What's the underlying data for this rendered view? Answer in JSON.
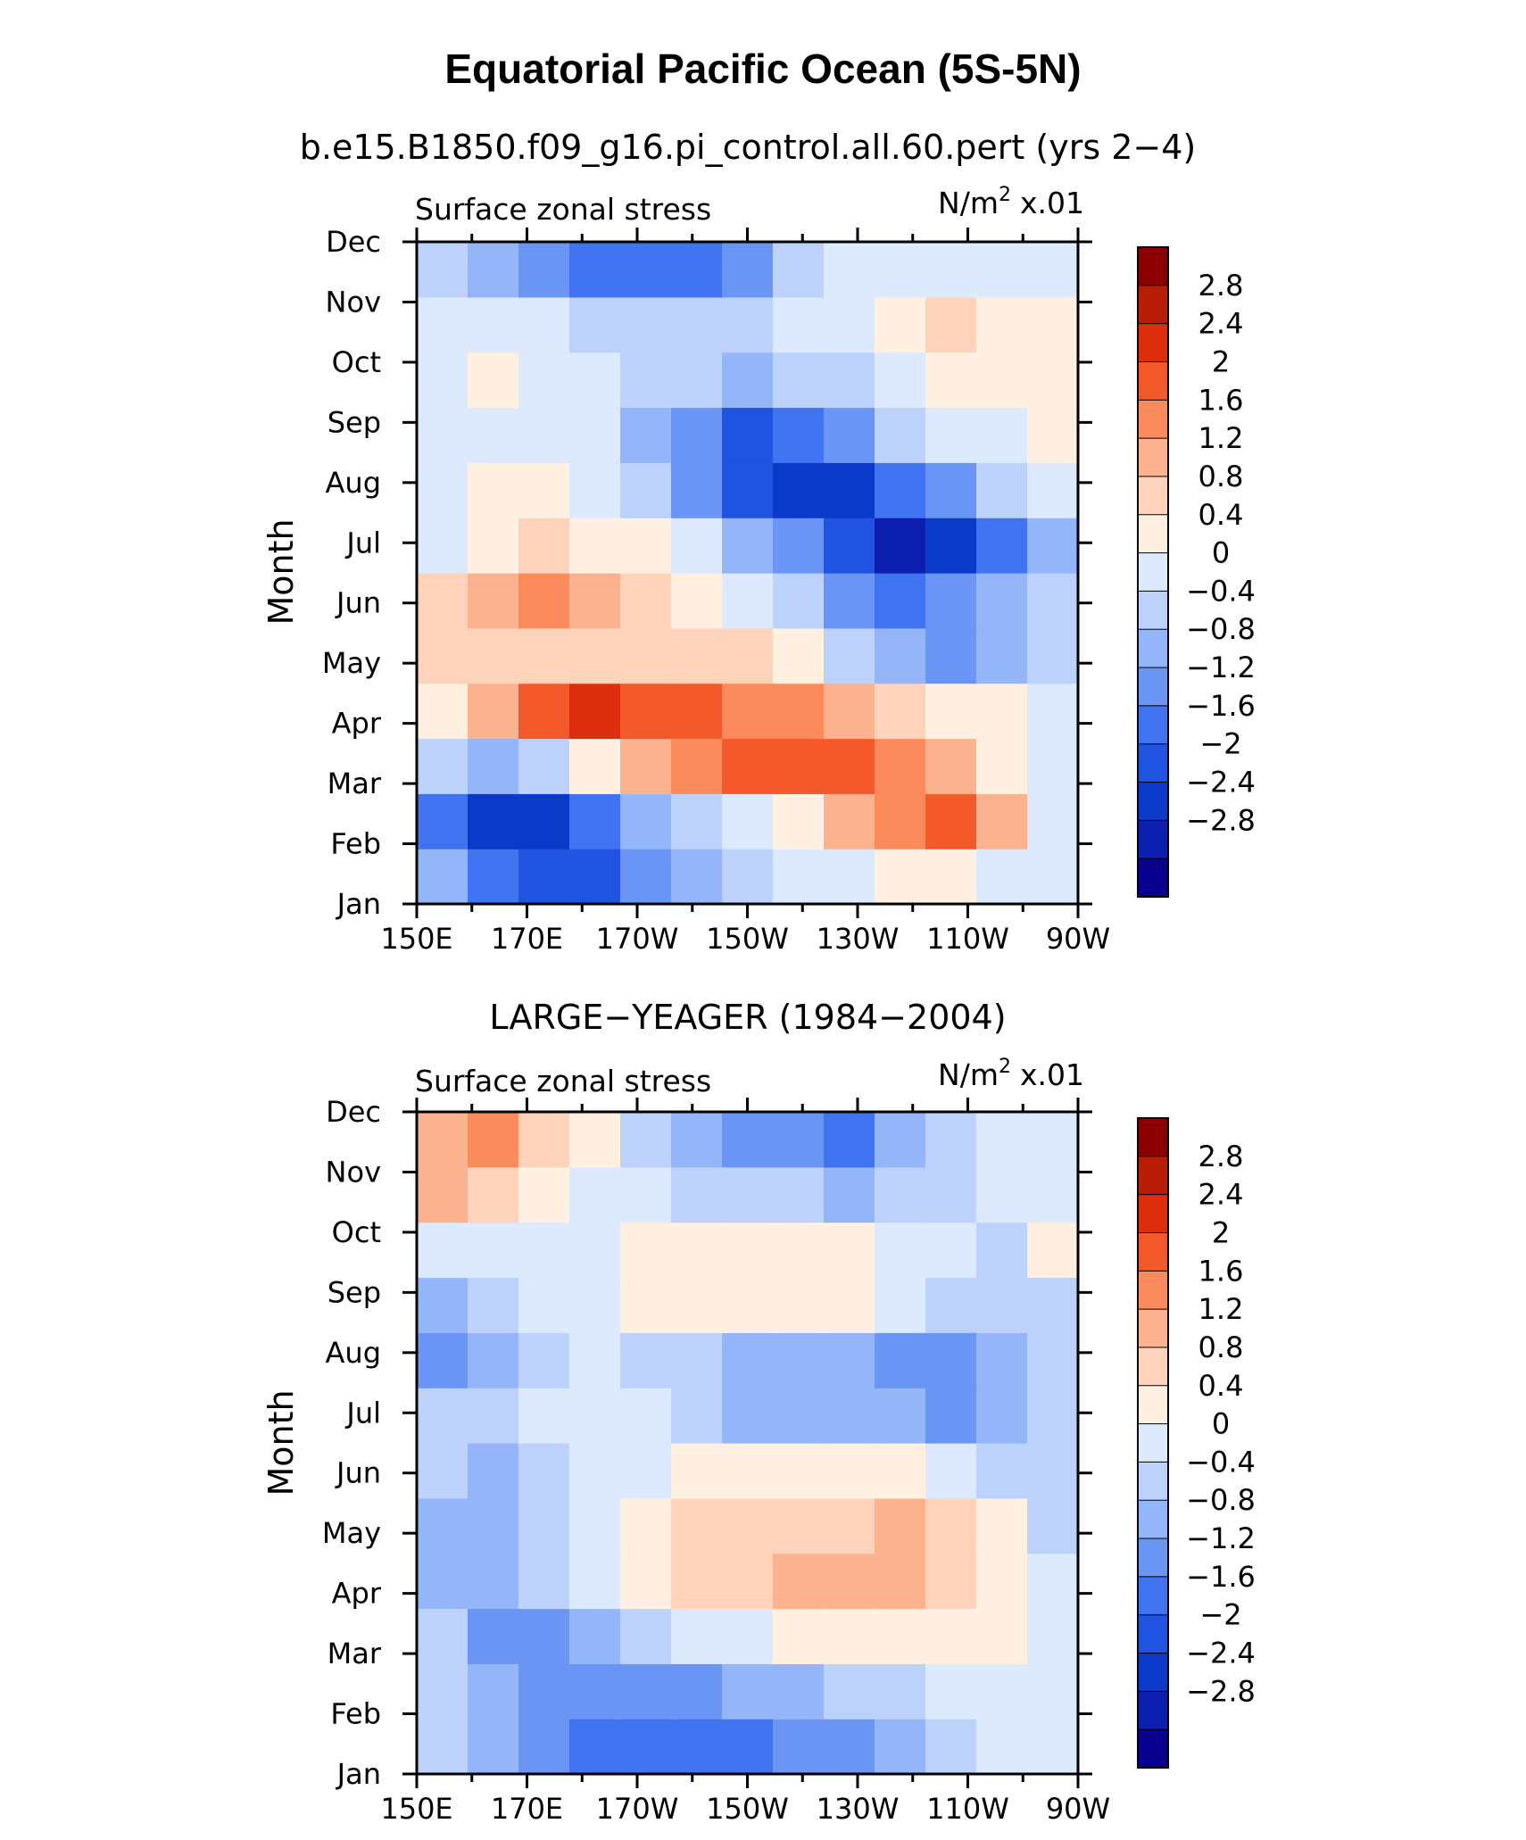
{
  "figure": {
    "title": "Equatorial Pacific Ocean (5S-5N)",
    "colors": [
      "#08008f",
      "#0c1fae",
      "#0b3ac9",
      "#1f53e0",
      "#3f73f0",
      "#6a95f5",
      "#94b6f9",
      "#bcd2fb",
      "#dde9fc",
      "#fff0e1",
      "#fdd3bb",
      "#fbb28f",
      "#fb8a5c",
      "#f4592c",
      "#dd2f10",
      "#b71c04",
      "#8a0000"
    ]
  },
  "chart_data": [
    {
      "type": "heatmap",
      "title": "b.e15.B1850.f09_g16.pi_control.all.60.pert (yrs 2−4)",
      "left_label": "Surface zonal stress",
      "right_label": "N/m",
      "units_sup": "2",
      "units_scale": "x.01",
      "ylabel": "Month",
      "x_ticks": [
        "150E",
        "170E",
        "170W",
        "150W",
        "130W",
        "110W",
        "90W"
      ],
      "x_ticks_visible": true,
      "y_ticks": [
        "Jan",
        "Feb",
        "Mar",
        "Apr",
        "May",
        "Jun",
        "Jul",
        "Aug",
        "Sep",
        "Oct",
        "Nov",
        "Dec"
      ],
      "x_grid_lon": [
        150,
        160,
        170,
        180,
        190,
        200,
        210,
        220,
        230,
        240,
        250,
        260,
        270
      ],
      "colorbar_levels": [
        "2.8",
        "2.4",
        "2",
        "1.6",
        "1.2",
        "0.8",
        "0.4",
        "0",
        "−0.4",
        "−0.8",
        "−1.2",
        "−1.6",
        "−2",
        "−2.4",
        "−2.8"
      ],
      "values": [
        [
          -0.7,
          -1.5,
          -2.0,
          -1.9,
          -1.2,
          -0.6,
          -0.2,
          0.1,
          0.3,
          0.6,
          0.6,
          0.3,
          0.1
        ],
        [
          -1.5,
          -2.3,
          -2.2,
          -1.5,
          -0.8,
          -0.2,
          0.3,
          0.7,
          1.3,
          1.6,
          2.1,
          1.5,
          0.3
        ],
        [
          -0.4,
          -0.6,
          -0.2,
          0.6,
          1.3,
          1.7,
          2.0,
          2.1,
          2.1,
          1.9,
          1.3,
          0.7,
          0.2
        ],
        [
          0.5,
          1.4,
          2.2,
          2.5,
          2.4,
          2.1,
          1.8,
          1.6,
          1.3,
          0.9,
          0.6,
          0.4,
          0.2
        ],
        [
          0.8,
          0.9,
          0.9,
          0.9,
          1.0,
          1.0,
          0.8,
          0.4,
          -0.2,
          -0.8,
          -1.0,
          -0.8,
          -0.3
        ],
        [
          1.0,
          1.5,
          1.6,
          1.3,
          0.8,
          0.4,
          0.1,
          -0.3,
          -0.9,
          -1.4,
          -1.2,
          -0.8,
          -0.4
        ],
        [
          0.2,
          0.6,
          0.9,
          0.7,
          0.4,
          0.0,
          -0.5,
          -1.2,
          -2.0,
          -2.7,
          -2.3,
          -1.6,
          -0.5
        ],
        [
          0.2,
          0.5,
          0.4,
          0.2,
          -0.2,
          -0.9,
          -1.7,
          -2.4,
          -2.2,
          -1.6,
          -0.9,
          -0.3,
          0.0
        ],
        [
          0.1,
          0.3,
          0.2,
          0.0,
          -0.5,
          -1.2,
          -1.7,
          -1.6,
          -1.0,
          -0.4,
          0.0,
          0.3,
          0.4
        ],
        [
          0.1,
          0.5,
          0.2,
          0.0,
          -0.2,
          -0.4,
          -0.5,
          -0.4,
          -0.1,
          0.3,
          0.5,
          0.6,
          0.6
        ],
        [
          0.0,
          0.2,
          0.1,
          -0.1,
          -0.2,
          -0.2,
          -0.2,
          0.0,
          0.3,
          0.7,
          0.9,
          0.7,
          0.5
        ],
        [
          -0.2,
          -0.5,
          -0.9,
          -1.3,
          -1.6,
          -1.5,
          -1.0,
          -0.4,
          0.0,
          0.2,
          0.3,
          0.3,
          0.2
        ]
      ]
    },
    {
      "type": "heatmap",
      "title": "LARGE−YEAGER (1984−2004)",
      "left_label": "Surface zonal stress",
      "right_label": "N/m",
      "units_sup": "2",
      "units_scale": "x.01",
      "ylabel": "Month",
      "x_ticks": [
        "150E",
        "170E",
        "170W",
        "150W",
        "130W",
        "110W",
        "90W"
      ],
      "x_ticks_visible": true,
      "y_ticks": [
        "Jan",
        "Feb",
        "Mar",
        "Apr",
        "May",
        "Jun",
        "Jul",
        "Aug",
        "Sep",
        "Oct",
        "Nov",
        "Dec"
      ],
      "x_grid_lon": [
        150,
        160,
        170,
        180,
        190,
        200,
        210,
        220,
        230,
        240,
        250,
        260,
        270
      ],
      "colorbar_levels": [
        "2.8",
        "2.4",
        "2",
        "1.6",
        "1.2",
        "0.8",
        "0.4",
        "0",
        "−0.4",
        "−0.8",
        "−1.2",
        "−1.6",
        "−2",
        "−2.4",
        "−2.8"
      ],
      "values": [
        [
          -0.2,
          -0.5,
          -0.9,
          -1.3,
          -1.6,
          -1.5,
          -1.3,
          -1.2,
          -1.0,
          -0.6,
          -0.2,
          0.1,
          0.2
        ],
        [
          -0.3,
          -0.8,
          -1.2,
          -1.0,
          -1.2,
          -1.0,
          -0.8,
          -0.6,
          -0.4,
          -0.1,
          0.2,
          0.3,
          0.3
        ],
        [
          -0.4,
          -1.1,
          -1.1,
          -0.8,
          -0.4,
          0.0,
          0.3,
          0.5,
          0.6,
          0.6,
          0.5,
          0.4,
          0.2
        ],
        [
          -0.6,
          -0.6,
          -0.3,
          0.1,
          0.5,
          0.8,
          1.0,
          1.2,
          1.3,
          1.2,
          0.9,
          0.5,
          0.1
        ],
        [
          -0.5,
          -0.8,
          -0.2,
          0.1,
          0.6,
          0.9,
          0.9,
          1.0,
          1.1,
          1.4,
          0.8,
          0.4,
          -0.2
        ],
        [
          -0.3,
          -0.5,
          -0.3,
          0.1,
          0.3,
          0.5,
          0.6,
          0.7,
          0.6,
          0.4,
          0.2,
          -0.1,
          -0.2
        ],
        [
          -0.4,
          -0.4,
          0.0,
          0.1,
          0.0,
          -0.1,
          -0.5,
          -0.7,
          -0.5,
          -0.6,
          -1.0,
          -0.8,
          -0.2
        ],
        [
          -1.2,
          -0.7,
          -0.2,
          0.0,
          -0.2,
          -0.4,
          -0.6,
          -0.7,
          -0.6,
          -0.9,
          -1.2,
          -0.6,
          -0.1
        ],
        [
          -0.7,
          -0.4,
          0.0,
          0.3,
          0.5,
          0.6,
          0.6,
          0.7,
          0.6,
          0.2,
          -0.3,
          -0.4,
          -0.1
        ],
        [
          0.2,
          0.2,
          0.3,
          0.2,
          0.4,
          0.6,
          0.7,
          0.7,
          0.5,
          0.3,
          0.1,
          -0.1,
          0.4
        ],
        [
          1.2,
          1.0,
          0.5,
          0.2,
          0.0,
          -0.1,
          -0.2,
          -0.3,
          -0.5,
          -0.4,
          -0.2,
          0.0,
          0.1
        ],
        [
          1.5,
          1.8,
          1.0,
          0.4,
          -0.2,
          -0.6,
          -0.9,
          -1.1,
          -1.4,
          -0.8,
          -0.2,
          0.1,
          0.3
        ]
      ]
    }
  ]
}
